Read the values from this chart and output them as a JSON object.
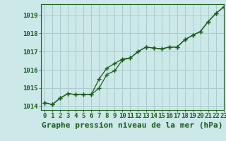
{
  "title": "Graphe pression niveau de la mer (hPa)",
  "background_color": "#cce8e8",
  "grid_color": "#aacccc",
  "line_color": "#1a5c1a",
  "marker_color": "#1a5c1a",
  "xlim": [
    -0.5,
    23
  ],
  "ylim": [
    1013.8,
    1019.6
  ],
  "yticks": [
    1014,
    1015,
    1016,
    1017,
    1018,
    1019
  ],
  "xticks": [
    0,
    1,
    2,
    3,
    4,
    5,
    6,
    7,
    8,
    9,
    10,
    11,
    12,
    13,
    14,
    15,
    16,
    17,
    18,
    19,
    20,
    21,
    22,
    23
  ],
  "hours": [
    0,
    1,
    2,
    3,
    4,
    5,
    6,
    7,
    8,
    9,
    10,
    11,
    12,
    13,
    14,
    15,
    16,
    17,
    18,
    19,
    20,
    21,
    22,
    23
  ],
  "line_actual": [
    1014.2,
    1014.1,
    1014.45,
    1014.7,
    1014.65,
    1014.65,
    1014.65,
    1015.0,
    1015.75,
    1015.95,
    1016.55,
    1016.65,
    1017.0,
    1017.25,
    1017.2,
    1017.15,
    1017.25,
    1017.25,
    1017.65,
    1017.9,
    1018.1,
    1018.65,
    1019.1,
    1019.45
  ],
  "line_trend": [
    1014.2,
    1014.1,
    1014.45,
    1014.7,
    1014.65,
    1014.65,
    1014.65,
    1015.5,
    1016.1,
    1016.35,
    1016.6,
    1016.65,
    1017.0,
    1017.25,
    1017.2,
    1017.15,
    1017.25,
    1017.25,
    1017.65,
    1017.9,
    1018.1,
    1018.65,
    1019.1,
    1019.45
  ],
  "title_fontsize": 8,
  "tick_fontsize": 6.5
}
